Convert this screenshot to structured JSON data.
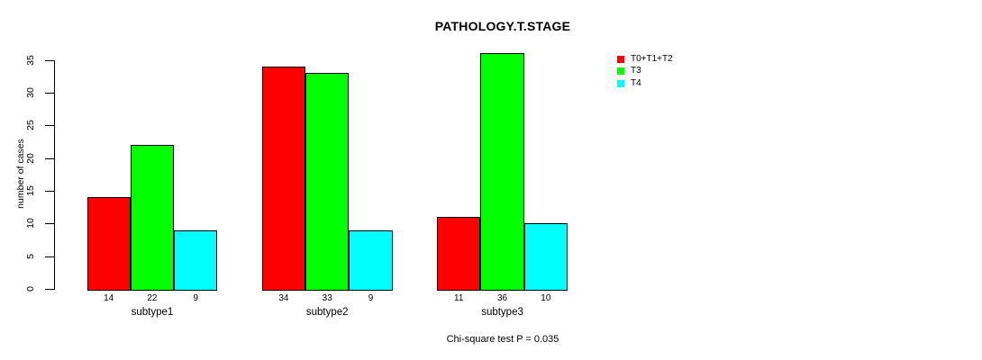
{
  "chart_data": {
    "type": "bar",
    "title": "PATHOLOGY.T.STAGE",
    "ylabel": "number of cases",
    "xlabel": "",
    "categories": [
      "subtype1",
      "subtype2",
      "subtype3"
    ],
    "series": [
      {
        "name": "T0+T1+T2",
        "color": "#ff0000",
        "values": [
          14,
          34,
          11
        ]
      },
      {
        "name": "T3",
        "color": "#00ff00",
        "values": [
          22,
          33,
          36
        ]
      },
      {
        "name": "T4",
        "color": "#00ffff",
        "values": [
          9,
          9,
          10
        ]
      }
    ],
    "ylim": [
      0,
      35
    ],
    "yticks": [
      0,
      5,
      10,
      15,
      20,
      25,
      30,
      35
    ],
    "grid": false,
    "legend_position": "right",
    "bar_value_labels": true,
    "annotation": "Chi-square test P = 0.035"
  },
  "colors": {
    "background": "#ffffff",
    "axis": "#000000",
    "text": "#000000",
    "bar_border": "#000000"
  }
}
